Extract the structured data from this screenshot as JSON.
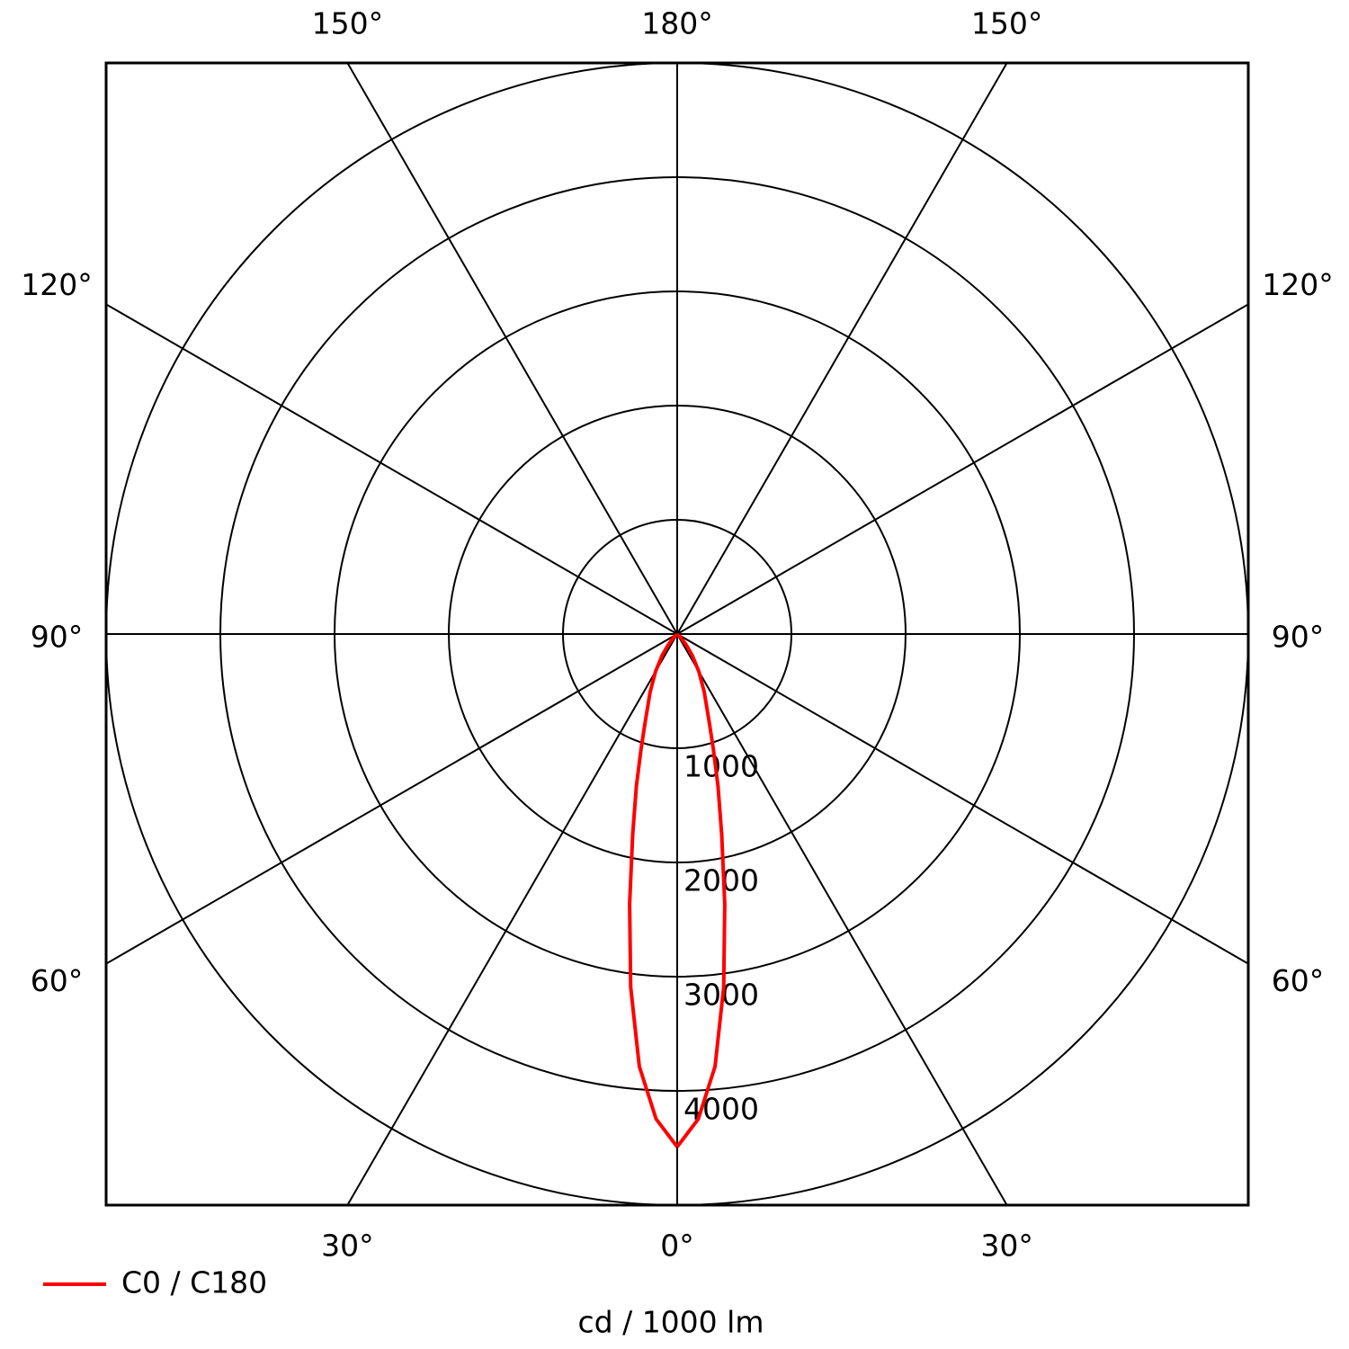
{
  "chart_data": {
    "type": "polar",
    "unit_label": "cd / 1000 lm",
    "rlim": [
      0,
      5000
    ],
    "rticks": [
      1000,
      2000,
      3000,
      4000
    ],
    "angle_ticks": [
      {
        "value": 0,
        "label": "0°"
      },
      {
        "value": 30,
        "label": "30°"
      },
      {
        "value": 60,
        "label": "60°"
      },
      {
        "value": 90,
        "label": "90°"
      },
      {
        "value": 120,
        "label": "120°"
      },
      {
        "value": 150,
        "label": "150°"
      },
      {
        "value": 180,
        "label": "180°"
      }
    ],
    "x": [
      0,
      2.5,
      5,
      7.5,
      10,
      12.5,
      15,
      17.5,
      20,
      25,
      30,
      35,
      40,
      45,
      50,
      90
    ],
    "series": [
      {
        "name": "C0 / C180",
        "color": "#ff0000",
        "values": [
          4490,
          4250,
          3800,
          3120,
          2400,
          1800,
          1380,
          1050,
          820,
          560,
          380,
          230,
          120,
          50,
          0,
          0
        ]
      }
    ]
  }
}
